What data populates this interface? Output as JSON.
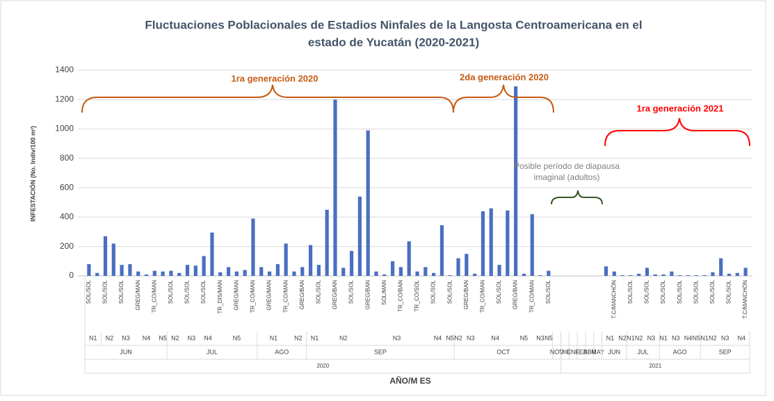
{
  "chart_data": {
    "type": "bar",
    "title": "Fluctuaciones Poblacionales de Estadios Ninfales de la Langosta Centroamericana en el",
    "title_line2": "estado de Yucatán (2020-2021)",
    "ylabel": "INFESTACIÓN  (No. Indiv/100 m²)",
    "xlabel": "AÑO/M ES",
    "color": "#4a6fc0",
    "grid": true,
    "ylim": [
      0,
      1400
    ],
    "yticks": [
      0,
      200,
      400,
      600,
      800,
      1000,
      1200,
      1400
    ],
    "annotations": [
      "1ra generación 2020",
      "2da generación 2020",
      "1ra generación 2021",
      "Posible período de diapausa",
      "imaginal (adultos)"
    ],
    "categories": [
      "SOL/SOL",
      null,
      "SOL/SOL",
      null,
      "SOL/SOL",
      null,
      "GREG/MAN",
      null,
      "TR_CO/MAN",
      null,
      "SOL/SOL",
      null,
      "SOL/SOL",
      null,
      "SOL/SOL",
      null,
      "TR_DIS/MAN",
      null,
      "GREG/MAN",
      null,
      "TR_CO/MAN",
      null,
      "GREG/MAN",
      null,
      "TR_CO/MAN",
      null,
      "GREG/BAN",
      null,
      "SOL/SOL",
      null,
      "GREG/BAN",
      null,
      "SOL/SOL",
      null,
      "GREG/BAN",
      null,
      "SOL/MAN",
      null,
      "TR_CO/BAN",
      null,
      "TR_CO/SOL",
      null,
      "SOL/SOL",
      null,
      "SOL/SOL",
      null,
      "GREG/BAN",
      null,
      "TR_CO/MAN",
      null,
      "SOL/SOL",
      null,
      "GREG/BAN",
      null,
      "TR_CO/MAN",
      null,
      "SOL/SOL",
      null,
      null,
      null,
      null,
      null,
      null,
      null,
      "T.C/MANCHÓN",
      null,
      "SOL/SOL",
      null,
      "SOL/SOL",
      null,
      "SOL/SOL",
      null,
      "SOL/SOL",
      null,
      "SOL/SOL",
      null,
      "SOL/SOL",
      null,
      "SOL/SOL",
      null,
      "T.C/MANCHÓN"
    ],
    "stage": [
      "N1",
      "N1",
      "N2",
      "N2",
      "N3",
      "N3",
      "N4",
      "N4",
      "N4",
      "N5",
      "N2",
      "N2",
      "N3",
      "N3",
      "N4",
      "N4",
      "N5",
      "N5",
      "N5",
      "N5",
      "N5",
      "N1",
      "N1",
      "N1",
      "N1",
      "N2",
      "N2",
      "N1",
      "N1",
      "N2",
      "N2",
      "N2",
      "N2",
      "N2",
      "N3",
      "N3",
      "N3",
      "N3",
      "N3",
      "N3",
      "N3",
      "N3",
      "N4",
      "N4",
      "N5",
      "N2",
      "N3",
      "N3",
      "N4",
      "N4",
      "N4",
      "N4",
      "N5",
      "N5",
      "N5",
      "N3",
      "N5",
      null,
      null,
      null,
      null,
      null,
      null,
      "N1",
      "N1",
      "N2",
      "N1",
      "N2",
      "N3",
      "N3",
      "N1",
      "N3",
      "N3",
      "N4",
      "N5",
      "N1",
      "N2",
      "N3",
      "N3",
      "N4",
      "N4"
    ],
    "month": [
      "JUN",
      "JUN",
      "JUN",
      "JUN",
      "JUN",
      "JUN",
      "JUN",
      "JUN",
      "JUN",
      "JUN",
      "JUL",
      "JUL",
      "JUL",
      "JUL",
      "JUL",
      "JUL",
      "JUL",
      "JUL",
      "JUL",
      "JUL",
      "JUL",
      "AGO",
      "AGO",
      "AGO",
      "AGO",
      "AGO",
      "AGO",
      "SEP",
      "SEP",
      "SEP",
      "SEP",
      "SEP",
      "SEP",
      "SEP",
      "SEP",
      "SEP",
      "SEP",
      "SEP",
      "SEP",
      "SEP",
      "SEP",
      "SEP",
      "SEP",
      "SEP",
      "SEP",
      "OCT",
      "OCT",
      "OCT",
      "OCT",
      "OCT",
      "OCT",
      "OCT",
      "OCT",
      "OCT",
      "OCT",
      "OCT",
      "OCT",
      "NOV",
      "DIC",
      "ENE",
      "FEB",
      "ABR",
      "MAY",
      "JUN",
      "JUN",
      "JUN",
      "JUL",
      "JUL",
      "JUL",
      "JUL",
      "AGO",
      "AGO",
      "AGO",
      "AGO",
      "AGO",
      "SEP",
      "SEP",
      "SEP",
      "SEP",
      "SEP",
      "SEP"
    ],
    "year": [
      "2020",
      "2020",
      "2020",
      "2020",
      "2020",
      "2020",
      "2020",
      "2020",
      "2020",
      "2020",
      "2020",
      "2020",
      "2020",
      "2020",
      "2020",
      "2020",
      "2020",
      "2020",
      "2020",
      "2020",
      "2020",
      "2020",
      "2020",
      "2020",
      "2020",
      "2020",
      "2020",
      "2020",
      "2020",
      "2020",
      "2020",
      "2020",
      "2020",
      "2020",
      "2020",
      "2020",
      "2020",
      "2020",
      "2020",
      "2020",
      "2020",
      "2020",
      "2020",
      "2020",
      "2020",
      "2020",
      "2020",
      "2020",
      "2020",
      "2020",
      "2020",
      "2020",
      "2020",
      "2020",
      "2020",
      "2020",
      "2020",
      "2020",
      "2021",
      "2021",
      "2021",
      "2021",
      "2021",
      "2021",
      "2021",
      "2021",
      "2021",
      "2021",
      "2021",
      "2021",
      "2021",
      "2021",
      "2021",
      "2021",
      "2021",
      "2021",
      "2021",
      "2021",
      "2021",
      "2021",
      "2021"
    ],
    "values": [
      80,
      20,
      270,
      220,
      75,
      80,
      30,
      10,
      35,
      30,
      35,
      20,
      75,
      70,
      135,
      295,
      25,
      60,
      30,
      40,
      390,
      60,
      30,
      80,
      220,
      30,
      60,
      210,
      75,
      450,
      1200,
      55,
      170,
      540,
      990,
      30,
      10,
      100,
      60,
      235,
      30,
      60,
      20,
      345,
      5,
      120,
      150,
      15,
      440,
      460,
      75,
      445,
      1290,
      15,
      420,
      5,
      35,
      null,
      null,
      null,
      null,
      null,
      null,
      65,
      30,
      5,
      5,
      15,
      55,
      10,
      10,
      30,
      5,
      5,
      5,
      5,
      25,
      120,
      15,
      20,
      55
    ]
  }
}
